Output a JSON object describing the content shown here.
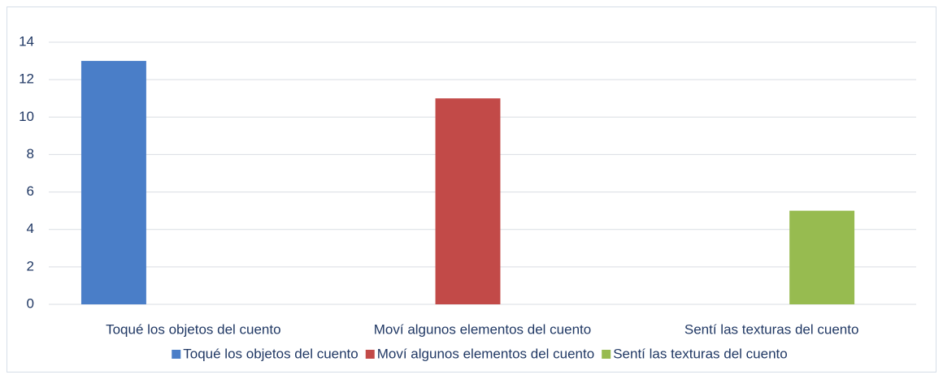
{
  "chart_data": {
    "type": "bar",
    "categories": [
      "Toqué los objetos del cuento",
      "Moví algunos elementos del cuento",
      "Sentí las texturas del cuento"
    ],
    "series": [
      {
        "name": "Toqué los objetos del cuento",
        "color": "#4a7ec8",
        "values": [
          13,
          null,
          null
        ]
      },
      {
        "name": "Moví algunos elementos del cuento",
        "color": "#c24a48",
        "values": [
          null,
          11,
          null
        ]
      },
      {
        "name": "Sentí las texturas del cuento",
        "color": "#97bb50",
        "values": [
          null,
          null,
          5
        ]
      }
    ],
    "ylim": [
      0,
      14
    ],
    "yticks": [
      0,
      2,
      4,
      6,
      8,
      10,
      12,
      14
    ],
    "grid": true,
    "legend": "bottom"
  }
}
